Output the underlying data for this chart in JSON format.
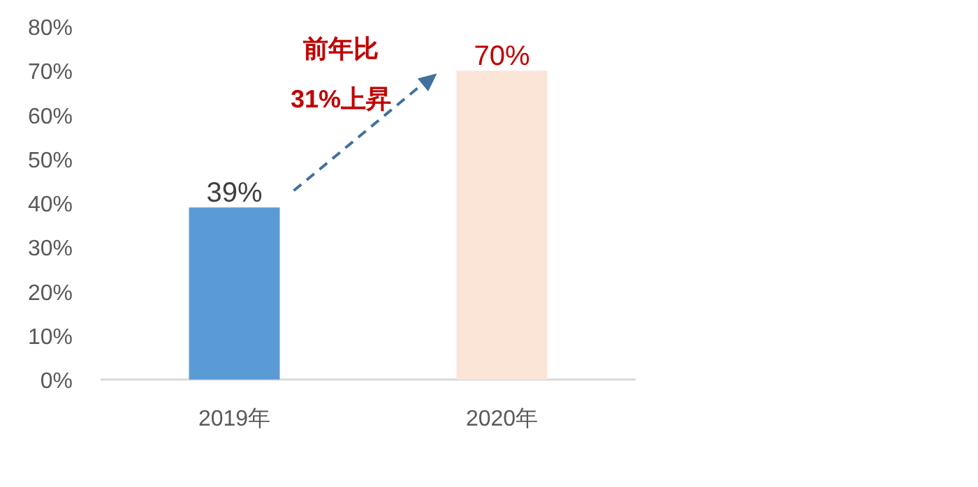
{
  "chart_data": {
    "type": "bar",
    "categories": [
      "2019年",
      "2020年"
    ],
    "values": [
      39,
      70
    ],
    "colors": [
      "#5b9bd5",
      "#fbe5d6"
    ],
    "value_labels": [
      "39%",
      "70%"
    ],
    "ylim": [
      0,
      80
    ],
    "yticks": [
      {
        "value": 0,
        "label": "0%"
      },
      {
        "value": 10,
        "label": "10%"
      },
      {
        "value": 20,
        "label": "20%"
      },
      {
        "value": 30,
        "label": "30%"
      },
      {
        "value": 40,
        "label": "40%"
      },
      {
        "value": 50,
        "label": "50%"
      },
      {
        "value": 60,
        "label": "60%"
      },
      {
        "value": 70,
        "label": "70%"
      },
      {
        "value": 80,
        "label": "80%"
      }
    ],
    "grid": false,
    "annotations": [
      "前年比",
      "31%上昇"
    ]
  }
}
